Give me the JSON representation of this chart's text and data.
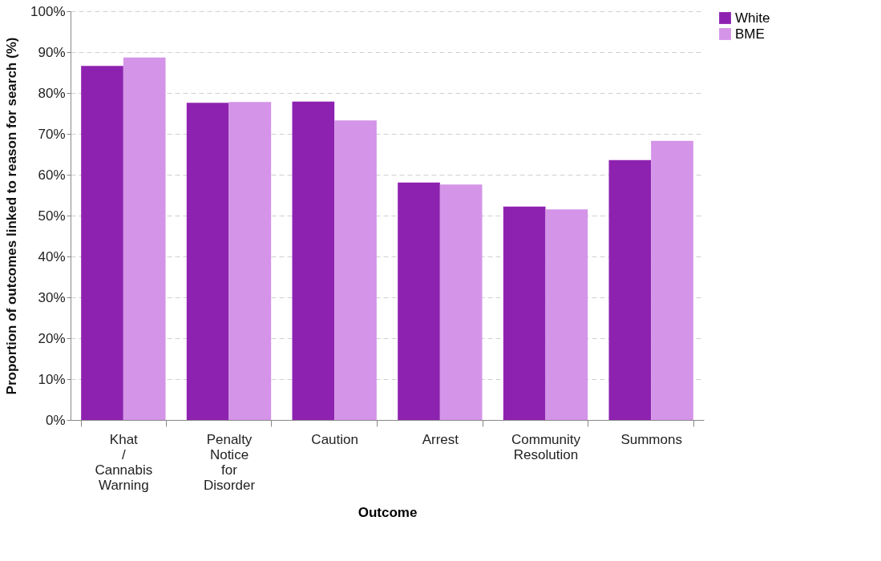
{
  "chart_data": {
    "type": "bar",
    "categories": [
      "Khat / Cannabis Warning",
      "Penalty Notice for Disorder",
      "Caution",
      "Arrest",
      "Community Resolution",
      "Summons"
    ],
    "series": [
      {
        "name": "White",
        "color": "#8e22b0",
        "values": [
          86.6,
          77.6,
          77.9,
          58.1,
          52.2,
          63.6
        ]
      },
      {
        "name": "BME",
        "color": "#d494e8",
        "values": [
          88.7,
          77.8,
          73.3,
          57.6,
          51.5,
          68.3
        ]
      }
    ],
    "xlabel": "Outcome",
    "ylabel": "Proportion of outcomes linked to reason for search (%)",
    "ylim": [
      0,
      100
    ],
    "yticks": [
      {
        "value": 0,
        "label": "0%"
      },
      {
        "value": 10,
        "label": "10%"
      },
      {
        "value": 20,
        "label": "20%"
      },
      {
        "value": 30,
        "label": "30%"
      },
      {
        "value": 40,
        "label": "40%"
      },
      {
        "value": 50,
        "label": "50%"
      },
      {
        "value": 60,
        "label": "60%"
      },
      {
        "value": 70,
        "label": "70%"
      },
      {
        "value": 80,
        "label": "80%"
      },
      {
        "value": 90,
        "label": "90%"
      },
      {
        "value": 100,
        "label": "100%"
      }
    ],
    "grid": "y",
    "legend": "right"
  }
}
